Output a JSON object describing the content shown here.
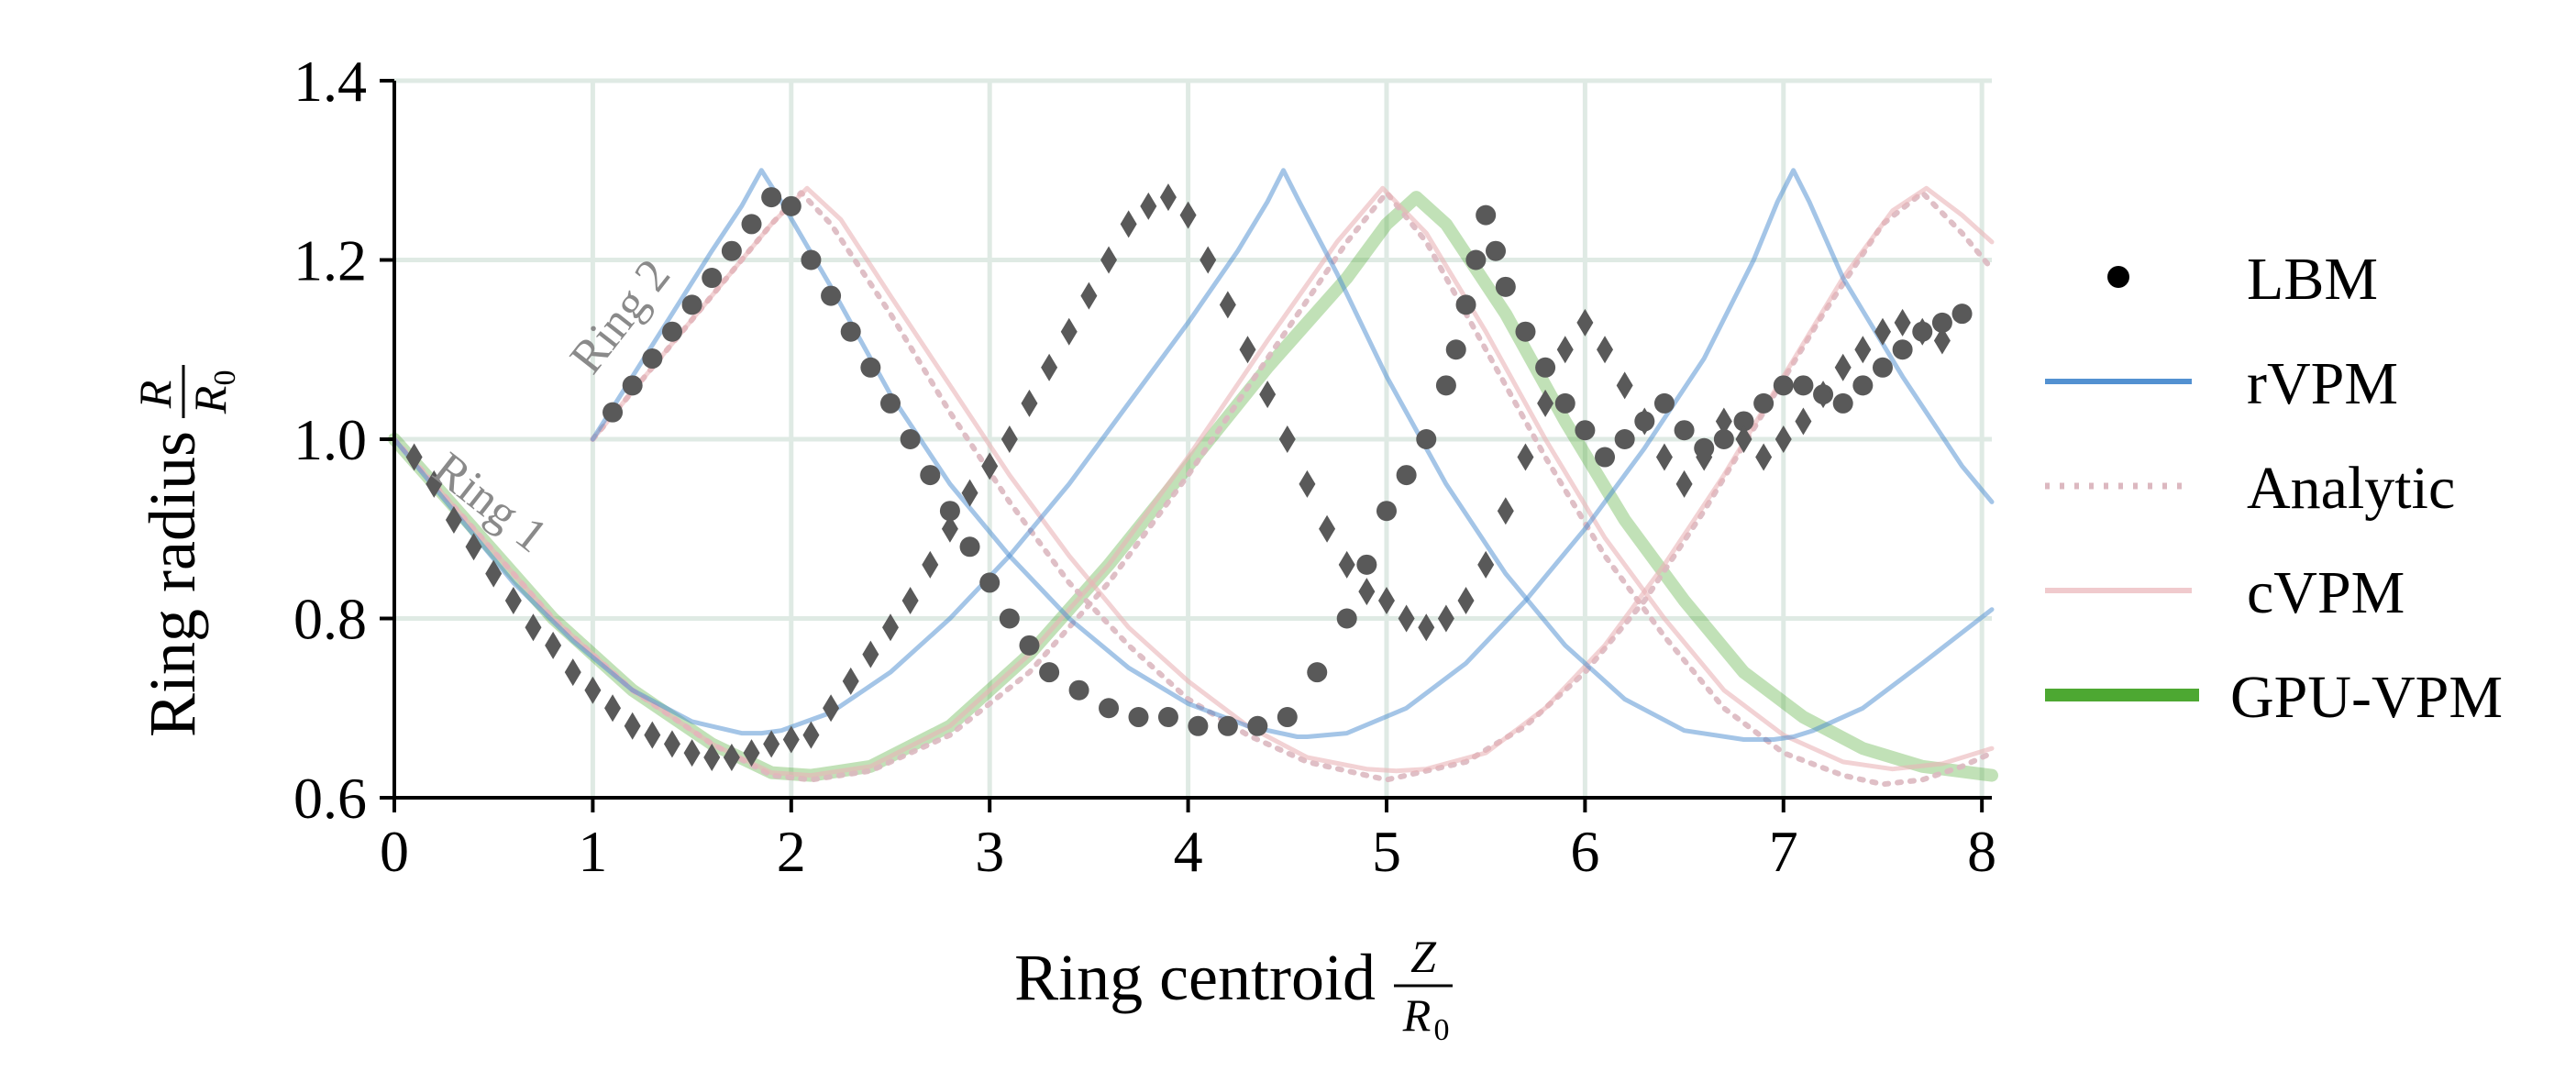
{
  "chart_data": {
    "type": "line",
    "xlabel": "Ring centroid",
    "xlabel_frac": {
      "num": "Z",
      "den": "R",
      "den_sub": "0"
    },
    "ylabel": "Ring radius",
    "ylabel_frac": {
      "num": "R",
      "den": "R",
      "den_sub": "0"
    },
    "xlim": [
      0,
      8.05
    ],
    "ylim": [
      0.6,
      1.4
    ],
    "xticks": [
      0,
      1,
      2,
      3,
      4,
      5,
      6,
      7,
      8
    ],
    "yticks": [
      0.6,
      0.8,
      1.0,
      1.2,
      1.4
    ],
    "xtick_labels": [
      "0",
      "1",
      "2",
      "3",
      "4",
      "5",
      "6",
      "7",
      "8"
    ],
    "ytick_labels": [
      "0.6",
      "0.8",
      "1.0",
      "1.2",
      "1.4"
    ],
    "grid": true,
    "legend_position": "right",
    "colors": {
      "LBM": "#595959",
      "rVPM": "#4a8bcf",
      "Analytic": "#dcb8c0",
      "cVPM": "#eab4b8",
      "GPU-VPM": "#4da832",
      "grid": "#dfeae4",
      "annotation": "#8a8a8a"
    },
    "annotations": [
      {
        "text": "Ring 1",
        "x": 0.18,
        "y": 0.96
      },
      {
        "text": "Ring 2",
        "x": 1.0,
        "y": 1.07
      }
    ],
    "legend": [
      {
        "label": "LBM",
        "marker": "dot"
      },
      {
        "label": "rVPM",
        "marker": "line"
      },
      {
        "label": "Analytic",
        "marker": "dotted"
      },
      {
        "label": "cVPM",
        "marker": "line"
      },
      {
        "label": "GPU-VPM",
        "marker": "thick-line"
      }
    ],
    "series": [
      {
        "name": "rVPM",
        "x": [
          0,
          0.3,
          0.6,
          0.9,
          1.2,
          1.5,
          1.75,
          1.85,
          1.95,
          2.2,
          2.5,
          2.8,
          3.1,
          3.4,
          3.7,
          4.0,
          4.25,
          4.4,
          4.48,
          4.56,
          4.75,
          5.0,
          5.3,
          5.6,
          5.9,
          6.2,
          6.5,
          6.8,
          6.95,
          7.05,
          7.15,
          7.4,
          7.7,
          8.05
        ],
        "y": [
          1.0,
          0.92,
          0.84,
          0.775,
          0.72,
          0.685,
          0.672,
          0.672,
          0.675,
          0.695,
          0.74,
          0.8,
          0.87,
          0.95,
          1.04,
          1.13,
          1.21,
          1.265,
          1.3,
          1.265,
          1.185,
          1.07,
          0.95,
          0.85,
          0.77,
          0.71,
          0.675,
          0.665,
          0.665,
          0.668,
          0.675,
          0.7,
          0.75,
          0.81
        ]
      },
      {
        "name": "rVPM",
        "x": [
          1.0,
          1.2,
          1.4,
          1.6,
          1.75,
          1.85,
          1.95,
          2.2,
          2.5,
          2.8,
          3.1,
          3.4,
          3.7,
          4.0,
          4.3,
          4.55,
          4.6,
          4.8,
          5.1,
          5.4,
          5.7,
          6.0,
          6.3,
          6.6,
          6.85,
          6.97,
          7.05,
          7.13,
          7.3,
          7.6,
          7.9,
          8.05
        ],
        "y": [
          1.0,
          1.07,
          1.14,
          1.21,
          1.26,
          1.3,
          1.265,
          1.17,
          1.05,
          0.95,
          0.87,
          0.8,
          0.745,
          0.705,
          0.68,
          0.668,
          0.668,
          0.672,
          0.7,
          0.75,
          0.82,
          0.9,
          0.99,
          1.09,
          1.2,
          1.265,
          1.3,
          1.265,
          1.18,
          1.07,
          0.97,
          0.93
        ]
      },
      {
        "name": "Analytic",
        "x": [
          1.0,
          1.3,
          1.6,
          1.9,
          2.05,
          2.2,
          2.5,
          2.8,
          3.1,
          3.4,
          3.7,
          4.0,
          4.3,
          4.6,
          4.9,
          5.0,
          5.1,
          5.4,
          5.7,
          6.0,
          6.3,
          6.6,
          6.9,
          7.2,
          7.5,
          7.7,
          7.9,
          8.05
        ],
        "y": [
          1.0,
          1.08,
          1.16,
          1.24,
          1.275,
          1.24,
          1.14,
          1.03,
          0.93,
          0.84,
          0.77,
          0.71,
          0.67,
          0.64,
          0.625,
          0.62,
          0.625,
          0.64,
          0.68,
          0.74,
          0.82,
          0.92,
          1.03,
          1.14,
          1.24,
          1.275,
          1.23,
          1.19
        ]
      },
      {
        "name": "Analytic",
        "x": [
          0.0,
          0.4,
          0.8,
          1.2,
          1.6,
          1.9,
          2.1,
          2.4,
          2.8,
          3.2,
          3.6,
          4.0,
          4.4,
          4.8,
          5.0,
          5.2,
          5.5,
          5.8,
          6.1,
          6.4,
          6.7,
          7.0,
          7.3,
          7.5,
          7.7,
          7.9,
          8.05
        ],
        "y": [
          1.0,
          0.9,
          0.8,
          0.72,
          0.66,
          0.625,
          0.62,
          0.63,
          0.67,
          0.74,
          0.84,
          0.96,
          1.09,
          1.22,
          1.275,
          1.22,
          1.1,
          0.98,
          0.87,
          0.78,
          0.7,
          0.65,
          0.625,
          0.615,
          0.62,
          0.635,
          0.65
        ]
      },
      {
        "name": "cVPM",
        "x": [
          1.0,
          1.3,
          1.6,
          1.9,
          2.08,
          2.25,
          2.5,
          2.8,
          3.1,
          3.4,
          3.7,
          4.0,
          4.3,
          4.6,
          4.9,
          5.05,
          5.2,
          5.5,
          5.8,
          6.1,
          6.4,
          6.7,
          7.0,
          7.3,
          7.55,
          7.72,
          7.9,
          8.05
        ],
        "y": [
          1.0,
          1.08,
          1.16,
          1.24,
          1.28,
          1.245,
          1.16,
          1.06,
          0.96,
          0.87,
          0.79,
          0.73,
          0.68,
          0.645,
          0.632,
          0.63,
          0.632,
          0.65,
          0.7,
          0.77,
          0.86,
          0.96,
          1.07,
          1.18,
          1.255,
          1.28,
          1.25,
          1.22
        ]
      },
      {
        "name": "cVPM",
        "x": [
          0.0,
          0.4,
          0.8,
          1.2,
          1.6,
          1.9,
          2.1,
          2.4,
          2.8,
          3.2,
          3.6,
          4.0,
          4.4,
          4.75,
          4.98,
          5.2,
          5.5,
          5.8,
          6.1,
          6.4,
          6.7,
          7.0,
          7.3,
          7.55,
          7.8,
          8.05
        ],
        "y": [
          1.0,
          0.9,
          0.8,
          0.72,
          0.66,
          0.628,
          0.625,
          0.635,
          0.68,
          0.76,
          0.86,
          0.98,
          1.11,
          1.22,
          1.28,
          1.23,
          1.12,
          1.0,
          0.89,
          0.8,
          0.72,
          0.67,
          0.64,
          0.632,
          0.638,
          0.655
        ]
      },
      {
        "name": "GPU-VPM",
        "x": [
          0.0,
          0.4,
          0.8,
          1.2,
          1.6,
          1.9,
          2.1,
          2.4,
          2.8,
          3.2,
          3.6,
          4.0,
          4.4,
          4.8,
          5.0,
          5.15,
          5.3,
          5.6,
          5.9,
          6.2,
          6.5,
          6.8,
          7.1,
          7.4,
          7.7,
          8.05
        ],
        "y": [
          1.0,
          0.9,
          0.8,
          0.72,
          0.66,
          0.628,
          0.625,
          0.635,
          0.68,
          0.76,
          0.86,
          0.97,
          1.08,
          1.18,
          1.24,
          1.27,
          1.24,
          1.14,
          1.02,
          0.91,
          0.82,
          0.74,
          0.69,
          0.655,
          0.635,
          0.625
        ]
      },
      {
        "name": "LBM",
        "marker": "circle",
        "x": [
          1.1,
          1.2,
          1.3,
          1.4,
          1.5,
          1.6,
          1.7,
          1.8,
          1.9,
          2.0,
          2.1,
          2.2,
          2.3,
          2.4,
          2.5,
          2.6,
          2.7,
          2.8,
          2.9,
          3.0,
          3.1,
          3.2,
          3.3,
          3.45,
          3.6,
          3.75,
          3.9,
          4.05,
          4.2,
          4.35,
          4.5,
          4.65,
          4.8,
          4.9,
          5.0,
          5.1,
          5.2,
          5.3,
          5.35,
          5.4,
          5.45,
          5.5,
          5.55,
          5.6,
          5.7,
          5.8,
          5.9,
          6.0,
          6.1,
          6.2,
          6.3,
          6.4,
          6.5,
          6.6,
          6.7,
          6.8,
          6.9,
          7.0,
          7.1,
          7.2,
          7.3,
          7.4,
          7.5,
          7.6,
          7.7,
          7.8,
          7.9
        ],
        "y": [
          1.03,
          1.06,
          1.09,
          1.12,
          1.15,
          1.18,
          1.21,
          1.24,
          1.27,
          1.26,
          1.2,
          1.16,
          1.12,
          1.08,
          1.04,
          1.0,
          0.96,
          0.92,
          0.88,
          0.84,
          0.8,
          0.77,
          0.74,
          0.72,
          0.7,
          0.69,
          0.69,
          0.68,
          0.68,
          0.68,
          0.69,
          0.74,
          0.8,
          0.86,
          0.92,
          0.96,
          1.0,
          1.06,
          1.1,
          1.15,
          1.2,
          1.25,
          1.21,
          1.17,
          1.12,
          1.08,
          1.04,
          1.01,
          0.98,
          1.0,
          1.02,
          1.04,
          1.01,
          0.99,
          1.0,
          1.02,
          1.04,
          1.06,
          1.06,
          1.05,
          1.04,
          1.06,
          1.08,
          1.1,
          1.12,
          1.13,
          1.14
        ]
      },
      {
        "name": "LBM",
        "marker": "diamond",
        "x": [
          0.1,
          0.2,
          0.3,
          0.4,
          0.5,
          0.6,
          0.7,
          0.8,
          0.9,
          1.0,
          1.1,
          1.2,
          1.3,
          1.4,
          1.5,
          1.6,
          1.7,
          1.8,
          1.9,
          2.0,
          2.1,
          2.2,
          2.3,
          2.4,
          2.5,
          2.6,
          2.7,
          2.8,
          2.9,
          3.0,
          3.1,
          3.2,
          3.3,
          3.4,
          3.5,
          3.6,
          3.7,
          3.8,
          3.9,
          4.0,
          4.1,
          4.2,
          4.3,
          4.4,
          4.5,
          4.6,
          4.7,
          4.8,
          4.9,
          5.0,
          5.1,
          5.2,
          5.3,
          5.4,
          5.5,
          5.6,
          5.7,
          5.8,
          5.9,
          6.0,
          6.1,
          6.2,
          6.3,
          6.4,
          6.5,
          6.6,
          6.7,
          6.8,
          6.9,
          7.0,
          7.1,
          7.2,
          7.3,
          7.4,
          7.5,
          7.6,
          7.7,
          7.8
        ],
        "y": [
          0.98,
          0.95,
          0.91,
          0.88,
          0.85,
          0.82,
          0.79,
          0.77,
          0.74,
          0.72,
          0.7,
          0.68,
          0.67,
          0.66,
          0.65,
          0.645,
          0.645,
          0.65,
          0.66,
          0.665,
          0.67,
          0.7,
          0.73,
          0.76,
          0.79,
          0.82,
          0.86,
          0.9,
          0.94,
          0.97,
          1.0,
          1.04,
          1.08,
          1.12,
          1.16,
          1.2,
          1.24,
          1.26,
          1.27,
          1.25,
          1.2,
          1.15,
          1.1,
          1.05,
          1.0,
          0.95,
          0.9,
          0.86,
          0.83,
          0.82,
          0.8,
          0.79,
          0.8,
          0.82,
          0.86,
          0.92,
          0.98,
          1.04,
          1.1,
          1.13,
          1.1,
          1.06,
          1.02,
          0.98,
          0.95,
          0.98,
          1.02,
          1.0,
          0.98,
          1.0,
          1.02,
          1.05,
          1.08,
          1.1,
          1.12,
          1.13,
          1.12,
          1.11
        ]
      }
    ]
  }
}
